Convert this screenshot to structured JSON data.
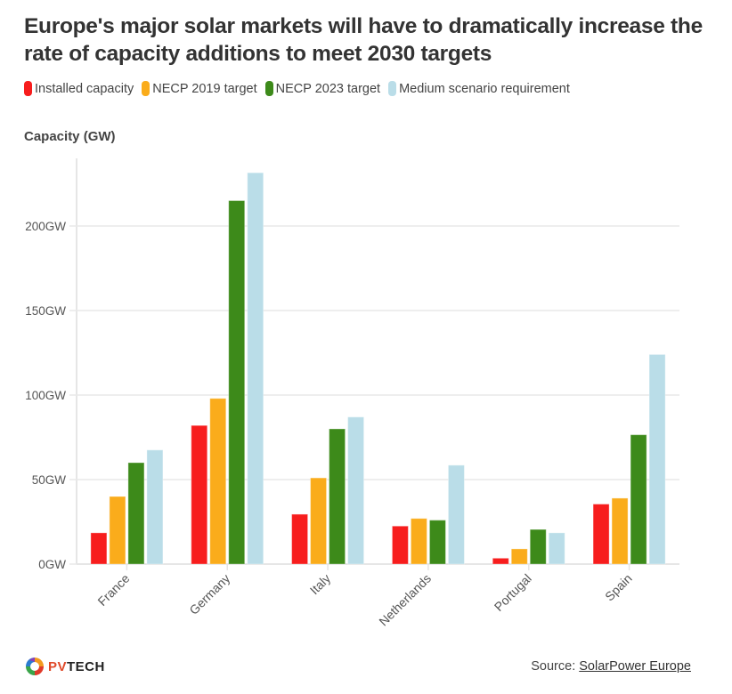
{
  "chart_data": {
    "type": "bar",
    "title": "Europe's major solar markets will have to dramatically increase the rate of capacity additions to meet 2030 targets",
    "xlabel": "",
    "ylabel": "Capacity (GW)",
    "ylim": [
      0,
      235
    ],
    "yticks": [
      0,
      50,
      100,
      150,
      200
    ],
    "ytick_labels": [
      "0GW",
      "50GW",
      "100GW",
      "150GW",
      "200GW"
    ],
    "grid": true,
    "legend_position": "top-left",
    "categories": [
      "France",
      "Germany",
      "Italy",
      "Netherlands",
      "Portugal",
      "Spain"
    ],
    "series": [
      {
        "name": "Installed capacity",
        "color": "#f71d1d",
        "values": [
          18.5,
          82,
          29.5,
          22.5,
          3.5,
          35.5
        ]
      },
      {
        "name": "NECP 2019 target",
        "color": "#faac1b",
        "values": [
          40,
          98,
          51,
          27,
          9,
          39
        ]
      },
      {
        "name": "NECP 2023 target",
        "color": "#3d8a1a",
        "values": [
          60,
          215,
          80,
          26,
          20.5,
          76.5
        ]
      },
      {
        "name": "Medium scenario requirement",
        "color": "#badde8",
        "values": [
          67.5,
          231.5,
          87,
          58.5,
          18.5,
          124
        ]
      }
    ]
  },
  "header": {
    "title": "Europe's major solar markets will have to dramatically increase the rate of capacity additions to meet 2030 targets",
    "axis_title": "Capacity (GW)"
  },
  "footer": {
    "logo_pv": "PV",
    "logo_tech": "TECH",
    "source_prefix": "Source: ",
    "source_link": "SolarPower Europe"
  }
}
